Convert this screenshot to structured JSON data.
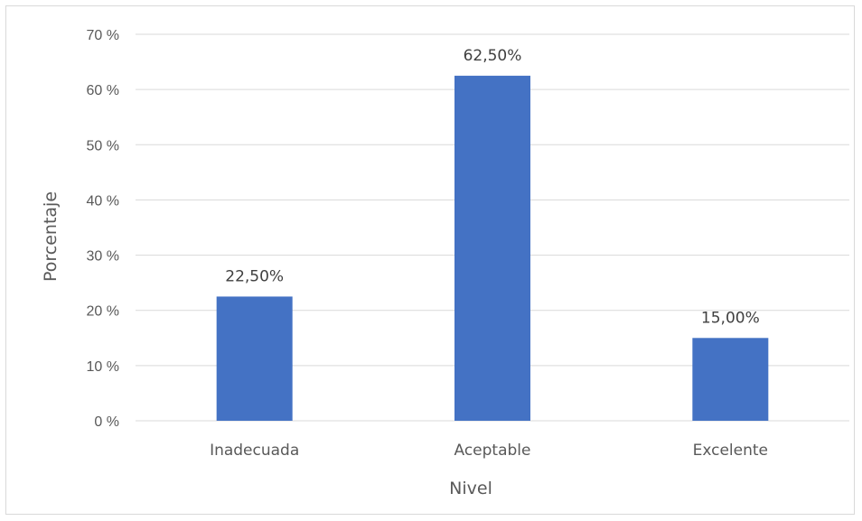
{
  "chart_data": {
    "type": "bar",
    "categories": [
      "Inadecuada",
      "Aceptable",
      "Excelente"
    ],
    "values": [
      22.5,
      62.5,
      15.0
    ],
    "data_labels": [
      "22,50%",
      "62,50%",
      "15,00%"
    ],
    "title": "",
    "xlabel": "Nivel",
    "ylabel": "Porcentaje",
    "ylim": [
      0,
      70
    ],
    "yticks": [
      0,
      10,
      20,
      30,
      40,
      50,
      60,
      70
    ],
    "ytick_labels": [
      "0 %",
      "10 %",
      "20 %",
      "30 %",
      "40 %",
      "50 %",
      "60 %",
      "70 %"
    ],
    "grid": true,
    "legend": "none",
    "bar_color": "#4472C4",
    "grid_color": "#d9d9d9"
  }
}
